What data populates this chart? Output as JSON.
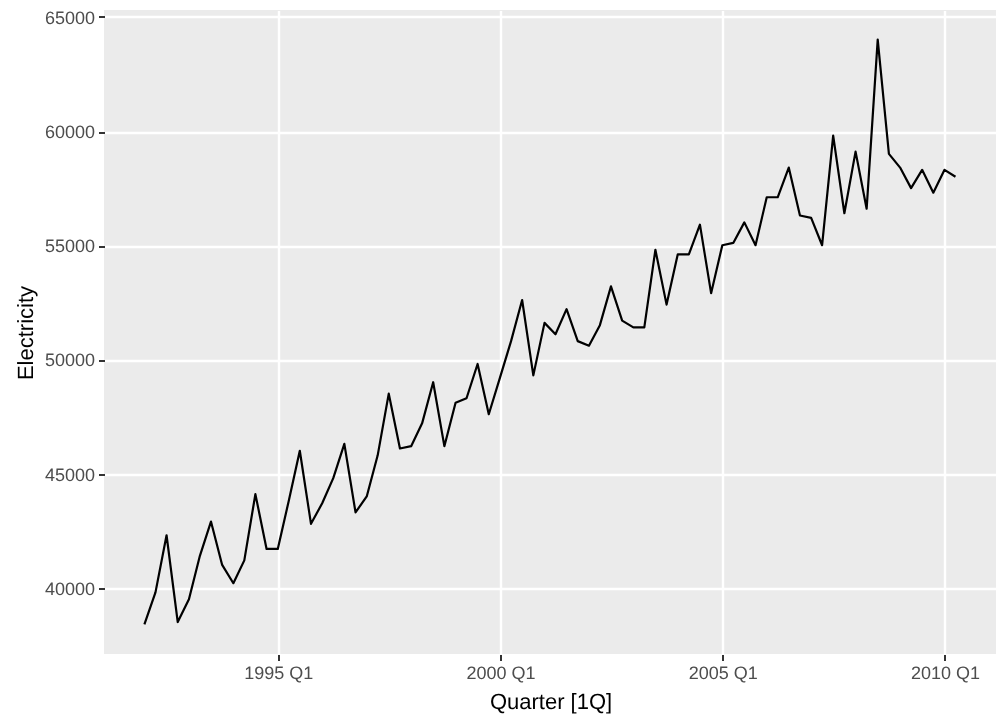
{
  "chart_data": {
    "type": "line",
    "xlabel": "Quarter [1Q]",
    "ylabel": "Electricity",
    "x": [
      "1992-01",
      "1992-04",
      "1992-07",
      "1992-10",
      "1993-01",
      "1993-04",
      "1993-07",
      "1993-10",
      "1994-01",
      "1994-04",
      "1994-07",
      "1994-10",
      "1995-01",
      "1995-04",
      "1995-07",
      "1995-10",
      "1996-01",
      "1996-04",
      "1996-07",
      "1996-10",
      "1997-01",
      "1997-04",
      "1997-07",
      "1997-10",
      "1998-01",
      "1998-04",
      "1998-07",
      "1998-10",
      "1999-01",
      "1999-04",
      "1999-07",
      "1999-10",
      "2000-01",
      "2000-04",
      "2000-07",
      "2000-10",
      "2001-01",
      "2001-04",
      "2001-07",
      "2001-10",
      "2002-01",
      "2002-04",
      "2002-07",
      "2002-10",
      "2003-01",
      "2003-04",
      "2003-07",
      "2003-10",
      "2004-01",
      "2004-04",
      "2004-07",
      "2004-10",
      "2005-01",
      "2005-04",
      "2005-07",
      "2005-10",
      "2006-01",
      "2006-04",
      "2006-07",
      "2006-10",
      "2007-01",
      "2007-04",
      "2007-07",
      "2007-10",
      "2008-01",
      "2008-04",
      "2008-07",
      "2008-10",
      "2009-01",
      "2009-04",
      "2009-07",
      "2009-10",
      "2010-01",
      "2010-04"
    ],
    "series": [
      {
        "color": "#000000",
        "values": [
          38400,
          39800,
          42300,
          38500,
          39500,
          41400,
          42900,
          41000,
          40200,
          41200,
          44100,
          41700,
          41700,
          43800,
          46000,
          42800,
          43700,
          44800,
          46300,
          43300,
          44000,
          45800,
          48500,
          46100,
          46200,
          47200,
          49000,
          46200,
          48100,
          48300,
          49800,
          47600,
          49200,
          50800,
          52600,
          49300,
          51600,
          51100,
          52200,
          50800,
          50600,
          51500,
          53200,
          51700,
          51400,
          51400,
          54800,
          52400,
          54600,
          54600,
          55900,
          52900,
          55000,
          55100,
          56000,
          55000,
          57100,
          57100,
          58400,
          56300,
          56200,
          55000,
          59800,
          56400,
          59100,
          56600,
          64000,
          59000,
          58400,
          57500,
          58300,
          57300,
          58300,
          58000
        ]
      }
    ],
    "xlim": [
      "1991-02-03",
      "2011-02-28"
    ],
    "ylim": [
      37100,
      65300
    ],
    "xticks": [
      {
        "value": "1995-01",
        "label": "1995 Q1"
      },
      {
        "value": "2000-01",
        "label": "2000 Q1"
      },
      {
        "value": "2005-01",
        "label": "2005 Q1"
      },
      {
        "value": "2010-01",
        "label": "2010 Q1"
      }
    ],
    "yticks": [
      40000,
      45000,
      50000,
      55000,
      60000,
      65000
    ],
    "grid": true,
    "marker": "none",
    "line_style": "solid"
  }
}
